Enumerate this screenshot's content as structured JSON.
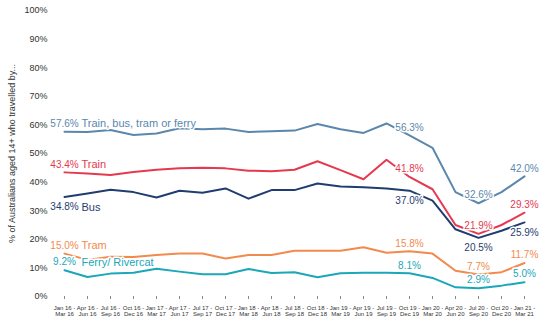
{
  "chart_data": {
    "type": "line",
    "ylabel": "% of Australians aged 14+ who travelled by...",
    "categories": [
      "Jan 16 -\nMar 16",
      "Apr 16 -\nJun 16",
      "Jul 16 -\nSep 16",
      "Oct 16 -\nDec 16",
      "Jan 17 -\nMar 17",
      "Apr 17 -\nJun 17",
      "Jul 17 -\nSep 17",
      "Oct 17 -\nDec 17",
      "Jan 18 -\nMar 18",
      "Apr 18 -\nJun 18",
      "Jul 18 -\nSep 18",
      "Oct 18 -\nDec 18",
      "Jan 19 -\nMar 19",
      "Apr 19 -\nJun 19",
      "Jul 19 -\nSep 19",
      "Oct 19 -\nDec 19",
      "Jan 20 -\nMar 20",
      "Apr 20 -\nJun 20",
      "Jul 20 -\nSep 20",
      "Oct 20 -\nDec 20",
      "Jan 21 -\nMar 21"
    ],
    "series": [
      {
        "name": "Train, bus, tram or ferry",
        "color": "#5b87ad",
        "values": [
          57.6,
          57.5,
          58.2,
          56.5,
          57.0,
          58.8,
          58.5,
          58.7,
          57.5,
          57.8,
          58.0,
          60.3,
          58.5,
          57.2,
          60.5,
          56.3,
          52.0,
          36.5,
          32.6,
          36.5,
          42.0
        ],
        "value_labels": [
          "57.6%",
          null,
          null,
          null,
          null,
          null,
          null,
          null,
          null,
          null,
          null,
          null,
          null,
          null,
          null,
          "56.3%",
          null,
          null,
          "32.6%",
          null,
          "42.0%"
        ]
      },
      {
        "name": "Train",
        "color": "#e63950",
        "values": [
          43.4,
          43.0,
          42.5,
          43.5,
          44.3,
          44.8,
          45.0,
          44.8,
          44.0,
          43.8,
          44.3,
          47.3,
          44.2,
          41.0,
          47.8,
          41.8,
          37.5,
          25.0,
          21.9,
          25.0,
          29.3
        ],
        "value_labels": [
          "43.4%",
          null,
          null,
          null,
          null,
          null,
          null,
          null,
          null,
          null,
          null,
          null,
          null,
          null,
          null,
          "41.8%",
          null,
          null,
          "21.9%",
          null,
          "29.3%"
        ]
      },
      {
        "name": "Bus",
        "color": "#1f3d70",
        "values": [
          34.8,
          36.0,
          37.3,
          36.5,
          34.6,
          37.0,
          36.3,
          37.8,
          34.2,
          37.2,
          37.2,
          39.5,
          38.5,
          38.2,
          37.8,
          37.0,
          33.5,
          23.5,
          20.5,
          23.0,
          25.9
        ],
        "value_labels": [
          "34.8%",
          null,
          null,
          null,
          null,
          null,
          null,
          null,
          null,
          null,
          null,
          null,
          null,
          null,
          null,
          "37.0%",
          null,
          null,
          "20.5%",
          null,
          "25.9%"
        ]
      },
      {
        "name": "Tram",
        "color": "#f28a4e",
        "values": [
          15.0,
          12.8,
          13.9,
          13.8,
          14.5,
          15.0,
          15.0,
          13.3,
          14.5,
          14.5,
          16.0,
          16.0,
          16.0,
          17.2,
          15.3,
          15.8,
          15.0,
          9.0,
          7.7,
          8.5,
          11.7
        ],
        "value_labels": [
          "15.0%",
          null,
          null,
          null,
          null,
          null,
          null,
          null,
          null,
          null,
          null,
          null,
          null,
          null,
          null,
          "15.8%",
          null,
          null,
          "7.7%",
          null,
          "11.7%"
        ]
      },
      {
        "name": "Ferry/ Rivercat",
        "color": "#1ba7b8",
        "values": [
          9.2,
          6.8,
          8.0,
          8.3,
          9.7,
          8.7,
          7.8,
          7.8,
          9.6,
          8.2,
          8.5,
          6.7,
          8.1,
          8.3,
          8.3,
          8.1,
          6.5,
          3.2,
          2.9,
          3.8,
          5.0
        ],
        "value_labels": [
          "9.2%",
          null,
          null,
          null,
          null,
          null,
          null,
          null,
          null,
          null,
          null,
          null,
          null,
          null,
          null,
          "8.1%",
          null,
          null,
          "2.9%",
          null,
          "5.0%"
        ]
      }
    ],
    "ylim": [
      0,
      100
    ],
    "yticks": [
      {
        "value": 0,
        "label": "0%"
      },
      {
        "value": 10,
        "label": "10%"
      },
      {
        "value": 20,
        "label": "20%"
      },
      {
        "value": 30,
        "label": "30%"
      },
      {
        "value": 40,
        "label": "40%"
      },
      {
        "value": 50,
        "label": "50%"
      },
      {
        "value": 60,
        "label": "60%"
      },
      {
        "value": 70,
        "label": "70%"
      },
      {
        "value": 80,
        "label": "80%"
      },
      {
        "value": 90,
        "label": "90%"
      },
      {
        "value": 100,
        "label": "100%"
      }
    ],
    "grid": false,
    "data_labels": true
  }
}
